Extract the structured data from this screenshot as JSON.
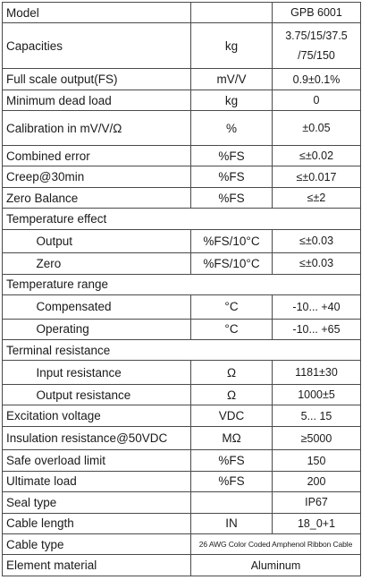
{
  "rows": [
    {
      "label": "Model",
      "unit": "",
      "value": "GPB 6001"
    },
    {
      "label": "Capacities",
      "unit": "kg",
      "value": "3.75/15/37.5",
      "value_line2": "/75/150"
    },
    {
      "label": "Full scale output(FS)",
      "unit": "mV/V",
      "value": "0.9±0.1%"
    },
    {
      "label": "Minimum dead load",
      "unit": "kg",
      "value": "0"
    },
    {
      "label": "Calibration in mV/V/Ω",
      "unit": "%",
      "value": "±0.05"
    },
    {
      "label": "Combined error",
      "unit": "%FS",
      "value": "≤±0.02"
    },
    {
      "label": "Creep@30min",
      "unit": "%FS",
      "value": "≤±0.017"
    },
    {
      "label": "Zero Balance",
      "unit": "%FS",
      "value": "≤±2"
    },
    {
      "group": "Temperature effect"
    },
    {
      "sub": "Output",
      "unit": "%FS/10°C",
      "value": "≤±0.03"
    },
    {
      "sub": "Zero",
      "unit": "%FS/10°C",
      "value": "≤±0.03"
    },
    {
      "group": "Temperature range"
    },
    {
      "sub": "Compensated",
      "unit": "°C",
      "value": "-10... +40"
    },
    {
      "sub": "Operating",
      "unit": "°C",
      "value": "-10... +65"
    },
    {
      "group": "Terminal resistance"
    },
    {
      "sub": "Input resistance",
      "unit": "Ω",
      "value": "1181±30"
    },
    {
      "sub": "Output resistance",
      "unit": "Ω",
      "value": "1000±5"
    },
    {
      "label": "Excitation voltage",
      "unit": "VDC",
      "value": "5... 15"
    },
    {
      "label": "Insulation resistance@50VDC",
      "unit": "MΩ",
      "value": "≥5000"
    },
    {
      "label": "Safe overload limit",
      "unit": "%FS",
      "value": "150"
    },
    {
      "label": "Ultimate load",
      "unit": "%FS",
      "value": "200"
    },
    {
      "label": "Seal type",
      "unit": "",
      "value": "IP67"
    },
    {
      "label": "Cable length",
      "unit": "IN",
      "value": "18_0+1"
    },
    {
      "label": "Cable type",
      "value": "26 AWG Color Coded Amphenol Ribbon Cable"
    },
    {
      "label": "Element material",
      "value": "Aluminum"
    }
  ]
}
